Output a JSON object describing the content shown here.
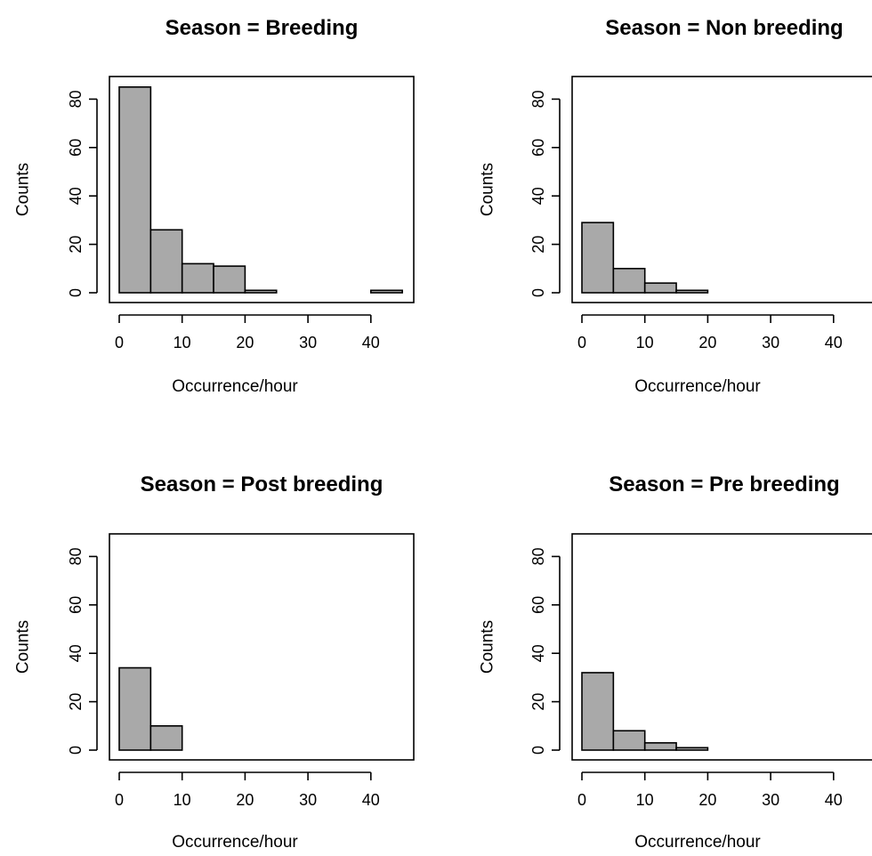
{
  "chart_data": [
    {
      "type": "bar",
      "title": "Season = Breeding",
      "xlabel": "Occurrence/hour",
      "ylabel": "Counts",
      "bin_edges": [
        0,
        5,
        10,
        15,
        20,
        25,
        30,
        35,
        40,
        45
      ],
      "values": [
        85,
        26,
        12,
        11,
        1,
        0,
        0,
        0,
        1
      ],
      "xticks": [
        0,
        10,
        20,
        30,
        40
      ],
      "yticks": [
        0,
        20,
        40,
        60,
        80
      ],
      "xlim": [
        -2,
        47
      ],
      "ylim": [
        0,
        90
      ],
      "bar_color": "#a9a9a9"
    },
    {
      "type": "bar",
      "title": "Season = Non breeding",
      "xlabel": "Occurrence/hour",
      "ylabel": "Counts",
      "bin_edges": [
        0,
        5,
        10,
        15,
        20
      ],
      "values": [
        29,
        10,
        4,
        1
      ],
      "xticks": [
        0,
        10,
        20,
        30,
        40
      ],
      "yticks": [
        0,
        20,
        40,
        60,
        80
      ],
      "xlim": [
        -2,
        47
      ],
      "ylim": [
        0,
        90
      ],
      "bar_color": "#a9a9a9"
    },
    {
      "type": "bar",
      "title": "Season = Post breeding",
      "xlabel": "Occurrence/hour",
      "ylabel": "Counts",
      "bin_edges": [
        0,
        5,
        10
      ],
      "values": [
        34,
        10
      ],
      "xticks": [
        0,
        10,
        20,
        30,
        40
      ],
      "yticks": [
        0,
        20,
        40,
        60,
        80
      ],
      "xlim": [
        -2,
        47
      ],
      "ylim": [
        0,
        90
      ],
      "bar_color": "#a9a9a9"
    },
    {
      "type": "bar",
      "title": "Season = Pre breeding",
      "xlabel": "Occurrence/hour",
      "ylabel": "Counts",
      "bin_edges": [
        0,
        5,
        10,
        15,
        20
      ],
      "values": [
        32,
        8,
        3,
        1
      ],
      "xticks": [
        0,
        10,
        20,
        30,
        40
      ],
      "yticks": [
        0,
        20,
        40,
        60,
        80
      ],
      "xlim": [
        -2,
        47
      ],
      "ylim": [
        0,
        90
      ],
      "bar_color": "#a9a9a9"
    }
  ]
}
